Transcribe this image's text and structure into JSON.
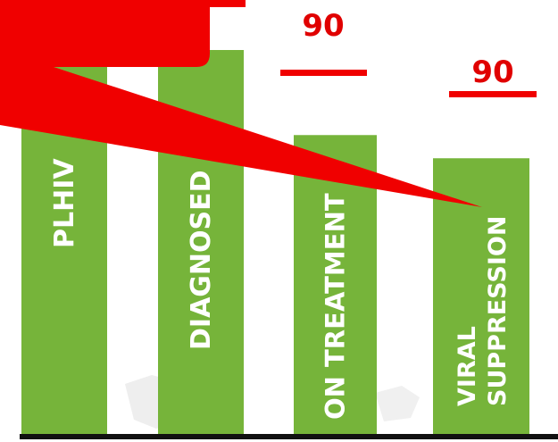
{
  "colors": {
    "bar": "#76b43a",
    "accent": "#f00000",
    "baseline": "#111111",
    "map_shadow": "#eeeeee"
  },
  "chart_data": {
    "type": "bar",
    "title": "",
    "xlabel": "",
    "ylabel": "",
    "ylim": [
      0,
      100
    ],
    "grid": false,
    "legend": "none",
    "categories": [
      "PLHIV",
      "DIAGNOSED",
      "ON TREATMENT",
      "VIRAL SUPPRESSION"
    ],
    "category_lines": [
      [
        "PLHIV"
      ],
      [
        "DIAGNOSED"
      ],
      [
        "ON TREATMENT"
      ],
      [
        "VIRAL",
        "SUPPRESSION"
      ]
    ],
    "values": [
      100,
      100,
      78,
      72
    ],
    "targets": [
      null,
      null,
      "90",
      "90"
    ]
  }
}
